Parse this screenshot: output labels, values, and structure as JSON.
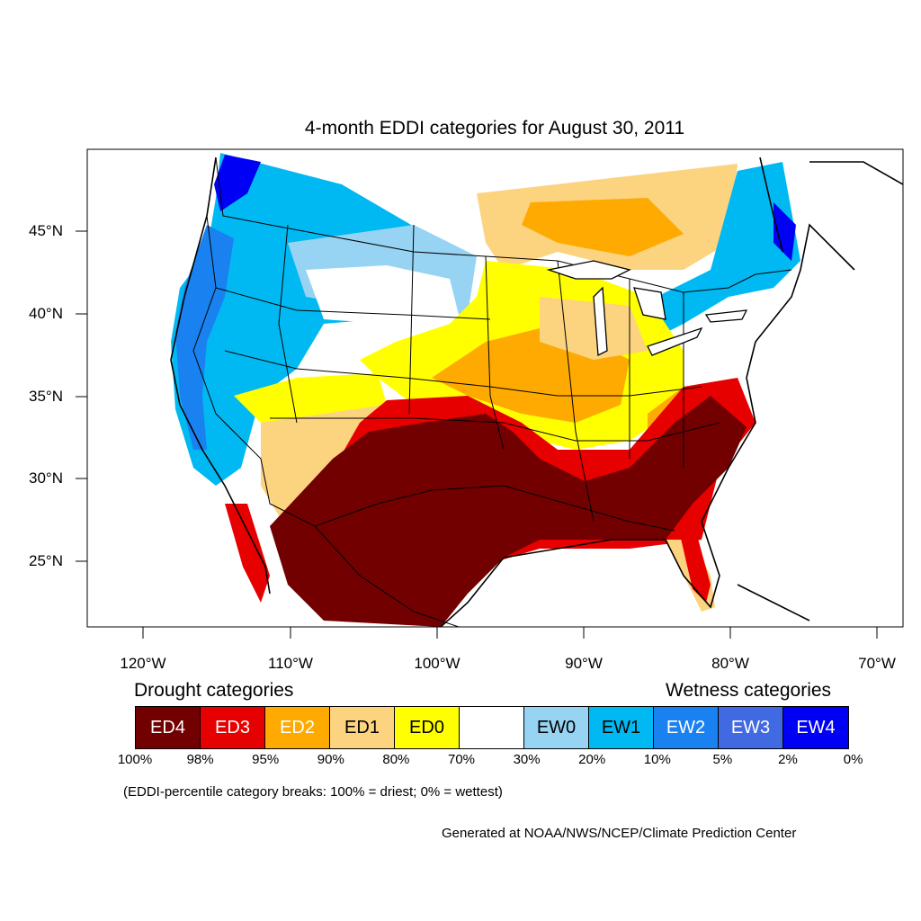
{
  "title": "4-month EDDI categories for August 30, 2011",
  "map": {
    "region": "Contiguous United States and surrounding North America",
    "lon_range": [
      -124,
      -68.5
    ],
    "lat_range": [
      21,
      49.7
    ],
    "lat_ticks": [
      {
        "label": "45°N",
        "value": 45
      },
      {
        "label": "40°N",
        "value": 40
      },
      {
        "label": "35°N",
        "value": 35
      },
      {
        "label": "30°N",
        "value": 30
      },
      {
        "label": "25°N",
        "value": 25
      }
    ],
    "lon_ticks": [
      {
        "label": "120°W",
        "value": -120
      },
      {
        "label": "110°W",
        "value": -110
      },
      {
        "label": "100°W",
        "value": -100
      },
      {
        "label": "90°W",
        "value": -90
      },
      {
        "label": "80°W",
        "value": -80
      },
      {
        "label": "70°W",
        "value": -70
      }
    ]
  },
  "legend": {
    "drought_heading": "Drought categories",
    "wetness_heading": "Wetness categories",
    "categories": [
      {
        "label": "ED4",
        "color": "#730000",
        "text_color": "#ffffff"
      },
      {
        "label": "ED3",
        "color": "#e60000",
        "text_color": "#ffffff"
      },
      {
        "label": "ED2",
        "color": "#ffaa00",
        "text_color": "#ffffff"
      },
      {
        "label": "ED1",
        "color": "#fcd37f",
        "text_color": "#000000"
      },
      {
        "label": "ED0",
        "color": "#ffff00",
        "text_color": "#000000"
      },
      {
        "label": "",
        "color": "#ffffff",
        "text_color": "#000000"
      },
      {
        "label": "EW0",
        "color": "#97d3f2",
        "text_color": "#000000"
      },
      {
        "label": "EW1",
        "color": "#00b9f2",
        "text_color": "#000000"
      },
      {
        "label": "EW2",
        "color": "#1a82f0",
        "text_color": "#ffffff"
      },
      {
        "label": "EW3",
        "color": "#4169e1",
        "text_color": "#ffffff"
      },
      {
        "label": "EW4",
        "color": "#0000f5",
        "text_color": "#ffffff"
      }
    ],
    "percent_breaks": [
      "100%",
      "98%",
      "95%",
      "90%",
      "80%",
      "70%",
      "30%",
      "20%",
      "10%",
      "5%",
      "2%",
      "0%"
    ]
  },
  "note": "(EDDI-percentile category breaks: 100% = driest; 0% = wettest)",
  "credit": "Generated at NOAA/NWS/NCEP/Climate Prediction Center"
}
